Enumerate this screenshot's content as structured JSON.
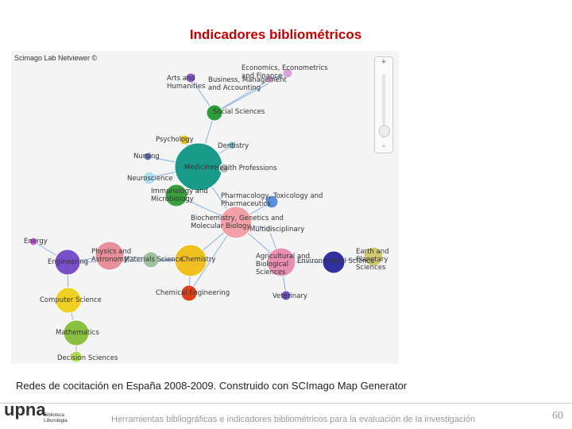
{
  "header": {
    "title": "Indicadores bibliométricos"
  },
  "viewer": {
    "label": "Scimago Lab Netviewer ©",
    "zoom_in": "+",
    "zoom_out": "-"
  },
  "nodes": [
    {
      "label": "Economics, Econometrics and Finance",
      "color": "#d9a0d8"
    },
    {
      "label": "Arts and Humanities",
      "color": "#8a5cc8"
    },
    {
      "label": "Business, Management and Accounting",
      "color": "#e0a8e0"
    },
    {
      "label": "Social Sciences",
      "color": "#2e9e3a"
    },
    {
      "label": "Psychology",
      "color": "#e0c020"
    },
    {
      "label": "Dentistry",
      "color": "#88bbcc"
    },
    {
      "label": "Nursing",
      "color": "#5577bb"
    },
    {
      "label": "Medicine",
      "color": "#1a9a8a"
    },
    {
      "label": "Health Professions",
      "color": "#bbbbbb"
    },
    {
      "label": "Neuroscience",
      "color": "#b0e0f0"
    },
    {
      "label": "Immunology and Microbiology",
      "color": "#3aa040"
    },
    {
      "label": "Pharmacology, Toxicology and Pharmaceutics",
      "color": "#5b8fd8"
    },
    {
      "label": "Biochemistry, Genetics and Molecular Biology",
      "color": "#f4a0a8"
    },
    {
      "label": "Multidisciplinary",
      "color": "#dddddd"
    },
    {
      "label": "Energy",
      "color": "#c060d0"
    },
    {
      "label": "Physics and Astronomy",
      "color": "#e8909a"
    },
    {
      "label": "Materials Science",
      "color": "#a0c0a0"
    },
    {
      "label": "Chemistry",
      "color": "#f0c020"
    },
    {
      "label": "Engineering",
      "color": "#7a50c8"
    },
    {
      "label": "Agricultural and Biological Sciences",
      "color": "#e890b0"
    },
    {
      "label": "Environmental Science",
      "color": "#3030a0"
    },
    {
      "label": "Earth and Planetary Sciences",
      "color": "#d0c870"
    },
    {
      "label": "Computer Science",
      "color": "#f0d020"
    },
    {
      "label": "Chemical Engineering",
      "color": "#e04020"
    },
    {
      "label": "Veterinary",
      "color": "#7050c0"
    },
    {
      "label": "Mathematics",
      "color": "#8cc040"
    },
    {
      "label": "Decision Sciences",
      "color": "#b0e050"
    }
  ],
  "caption": "Redes de cocitación en España 2008-2009. Construido con SCImago Map Generator",
  "footer": {
    "text": "Herramientas bibliográficas e indicadores bibliométricos para la evaluación de la investigación",
    "page": "60",
    "logo": "upna",
    "logo_sub": "Biblioteca Liburutegia"
  }
}
